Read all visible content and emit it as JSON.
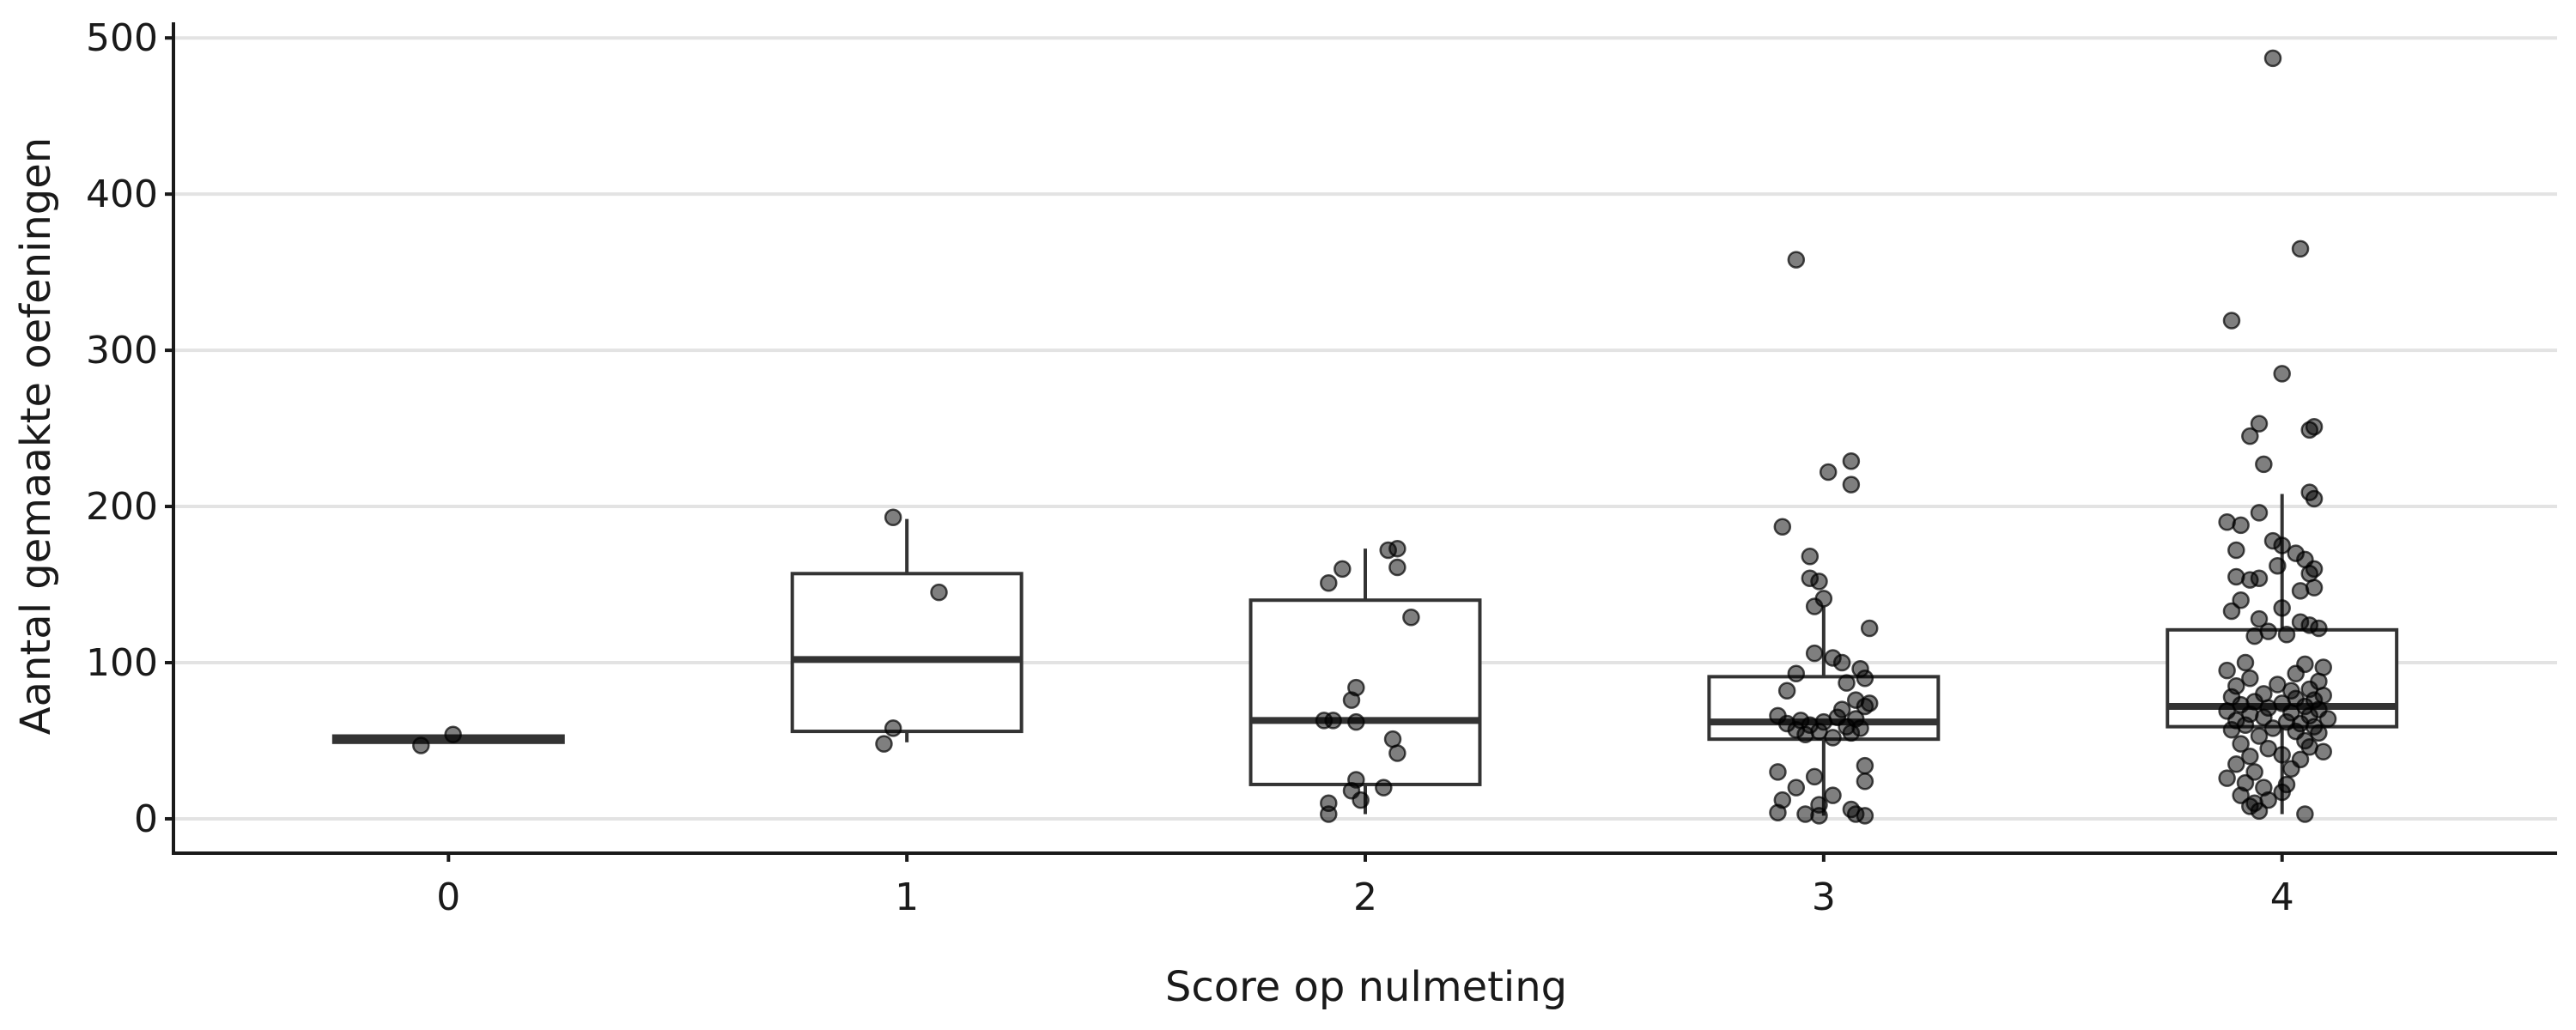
{
  "chart_data": {
    "type": "boxplot",
    "xlabel": "Score op nulmeting",
    "ylabel": "Aantal gemaakte oefeningen",
    "ylim": [
      -22,
      510
    ],
    "yticks": [
      0,
      100,
      200,
      300,
      400,
      500
    ],
    "grid": "horizontal",
    "legend": "none",
    "colors": {
      "box_line": "#333333",
      "point": "#000000",
      "grid": "#e3e3e3"
    },
    "categories": [
      "0",
      "1",
      "2",
      "3",
      "4"
    ],
    "boxes": [
      {
        "category": "0",
        "q1": 49,
        "median": 51,
        "q3": 53,
        "whisker_low": 49,
        "whisker_high": 53
      },
      {
        "category": "1",
        "q1": 56,
        "median": 102,
        "q3": 157,
        "whisker_low": 49,
        "whisker_high": 192
      },
      {
        "category": "2",
        "q1": 22,
        "median": 63,
        "q3": 140,
        "whisker_low": 3,
        "whisker_high": 173
      },
      {
        "category": "3",
        "q1": 51,
        "median": 62,
        "q3": 91,
        "whisker_low": 2,
        "whisker_high": 136
      },
      {
        "category": "4",
        "q1": 59,
        "median": 72,
        "q3": 121,
        "whisker_low": 3,
        "whisker_high": 208
      }
    ],
    "points": [
      {
        "category": "0",
        "values": [
          47,
          54
        ],
        "offsets": [
          -0.06,
          0.01
        ]
      },
      {
        "category": "1",
        "values": [
          193,
          145,
          58,
          48
        ],
        "offsets": [
          -0.03,
          0.07,
          -0.03,
          -0.05
        ]
      },
      {
        "category": "2",
        "values": [
          172,
          173,
          151,
          160,
          161,
          129,
          84,
          76,
          63,
          63,
          62,
          51,
          42,
          25,
          20,
          18,
          12,
          10,
          3
        ],
        "offsets": [
          0.05,
          0.07,
          -0.08,
          -0.05,
          0.07,
          0.1,
          -0.02,
          -0.03,
          -0.09,
          -0.07,
          -0.02,
          0.06,
          0.07,
          -0.02,
          0.04,
          -0.03,
          -0.01,
          -0.08,
          -0.08
        ]
      },
      {
        "category": "3",
        "values": [
          358,
          229,
          222,
          214,
          187,
          168,
          154,
          152,
          141,
          136,
          122,
          106,
          103,
          100,
          96,
          93,
          90,
          87,
          82,
          76,
          74,
          72,
          70,
          66,
          65,
          64,
          63,
          62,
          61,
          60,
          59,
          58,
          57,
          56,
          55,
          54,
          52,
          34,
          30,
          27,
          24,
          20,
          15,
          12,
          9,
          6,
          4,
          3,
          3,
          2,
          2
        ],
        "offsets": [
          -0.06,
          0.06,
          0.01,
          0.06,
          -0.09,
          -0.03,
          -0.03,
          -0.01,
          0.0,
          -0.02,
          0.1,
          -0.02,
          0.02,
          0.04,
          0.08,
          -0.06,
          0.09,
          0.05,
          -0.08,
          0.07,
          0.1,
          0.09,
          0.04,
          -0.1,
          0.03,
          0.07,
          -0.05,
          0.0,
          -0.08,
          -0.03,
          0.05,
          0.08,
          -0.06,
          -0.01,
          0.06,
          -0.04,
          0.02,
          0.09,
          -0.1,
          -0.02,
          0.09,
          -0.06,
          0.02,
          -0.09,
          -0.01,
          0.06,
          -0.1,
          0.07,
          -0.04,
          0.09,
          -0.01
        ]
      },
      {
        "category": "4",
        "values": [
          487,
          365,
          319,
          285,
          253,
          251,
          249,
          245,
          227,
          209,
          205,
          196,
          190,
          188,
          178,
          175,
          172,
          170,
          166,
          162,
          160,
          157,
          155,
          154,
          153,
          148,
          146,
          140,
          135,
          133,
          128,
          126,
          124,
          122,
          120,
          118,
          117,
          100,
          99,
          97,
          95,
          93,
          90,
          88,
          86,
          85,
          83,
          82,
          80,
          79,
          78,
          77,
          76,
          75,
          74,
          73,
          72,
          71,
          70,
          69,
          68,
          67,
          66,
          65,
          64,
          63,
          62,
          61,
          60,
          59,
          58,
          57,
          56,
          55,
          53,
          50,
          48,
          46,
          45,
          43,
          41,
          40,
          38,
          35,
          32,
          30,
          26,
          23,
          22,
          20,
          17,
          15,
          12,
          10,
          8,
          5,
          3
        ],
        "offsets": [
          -0.02,
          0.04,
          -0.11,
          0.0,
          -0.05,
          0.07,
          0.06,
          -0.07,
          -0.04,
          0.06,
          0.07,
          -0.05,
          -0.12,
          -0.09,
          -0.02,
          0.0,
          -0.1,
          0.03,
          0.05,
          -0.01,
          0.07,
          0.06,
          -0.1,
          -0.05,
          -0.07,
          0.07,
          0.04,
          -0.09,
          0.0,
          -0.11,
          -0.05,
          0.04,
          0.06,
          0.08,
          -0.03,
          0.01,
          -0.06,
          -0.08,
          0.05,
          0.09,
          -0.12,
          0.03,
          -0.07,
          0.08,
          -0.01,
          -0.1,
          0.06,
          0.02,
          -0.04,
          0.09,
          -0.11,
          0.03,
          0.07,
          -0.06,
          0.0,
          -0.09,
          0.05,
          -0.03,
          0.08,
          -0.12,
          0.02,
          -0.07,
          0.06,
          -0.04,
          0.1,
          -0.1,
          0.01,
          0.04,
          -0.08,
          0.07,
          -0.02,
          -0.11,
          0.03,
          0.08,
          -0.05,
          0.05,
          -0.09,
          0.06,
          -0.03,
          0.09,
          0.0,
          -0.07,
          0.04,
          -0.1,
          0.02,
          -0.06,
          -0.12,
          -0.08,
          0.01,
          -0.04,
          0.0,
          -0.09,
          -0.03,
          -0.06,
          -0.07,
          -0.05,
          0.05
        ]
      }
    ]
  }
}
